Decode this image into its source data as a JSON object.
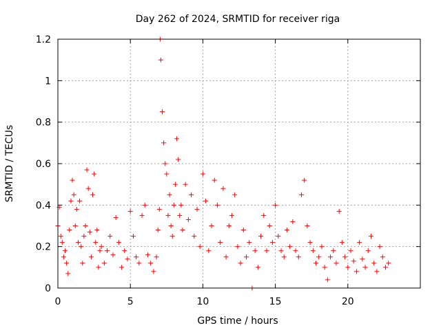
{
  "chart_data": {
    "type": "scatter",
    "title": "Day 262 of 2024, SRMTID for receiver riga",
    "xlabel": "GPS time / hours",
    "ylabel": "SRMTID / TECUs",
    "xlim": [
      0,
      25
    ],
    "ylim": [
      0,
      1.2
    ],
    "grid": true,
    "xticks": [
      0,
      5,
      10,
      15,
      20
    ],
    "xtick_labels": [
      "0",
      "5",
      "10",
      "15",
      "20"
    ],
    "yticks": [
      0,
      0.2,
      0.4,
      0.6,
      0.8,
      1,
      1.2
    ],
    "ytick_labels": [
      "0",
      "0.2",
      "0.4",
      "0.6",
      "0.8",
      "1",
      "1.2"
    ],
    "marker": "+",
    "color": "#ff0000",
    "series": [
      {
        "name": "SRMTID",
        "x": [
          0.0,
          0.1,
          0.2,
          0.3,
          0.4,
          0.5,
          0.6,
          0.7,
          0.8,
          0.9,
          1.0,
          1.1,
          1.2,
          1.3,
          1.4,
          1.5,
          1.6,
          1.7,
          1.8,
          1.9,
          2.0,
          2.1,
          2.2,
          2.3,
          2.4,
          2.5,
          2.6,
          2.7,
          2.8,
          2.9,
          3.0,
          3.2,
          3.4,
          3.6,
          3.8,
          4.0,
          4.2,
          4.4,
          4.6,
          4.8,
          5.0,
          5.2,
          5.4,
          5.6,
          5.8,
          6.0,
          6.2,
          6.4,
          6.6,
          6.8,
          6.9,
          7.0,
          7.05,
          7.1,
          7.2,
          7.3,
          7.4,
          7.5,
          7.6,
          7.7,
          7.8,
          7.9,
          8.0,
          8.1,
          8.2,
          8.3,
          8.4,
          8.5,
          8.6,
          8.8,
          9.0,
          9.2,
          9.4,
          9.6,
          9.8,
          10.0,
          10.2,
          10.4,
          10.6,
          10.8,
          11.0,
          11.2,
          11.4,
          11.6,
          11.8,
          12.0,
          12.2,
          12.4,
          12.6,
          12.8,
          13.0,
          13.2,
          13.4,
          13.6,
          13.8,
          14.0,
          14.2,
          14.4,
          14.6,
          14.8,
          15.0,
          15.2,
          15.4,
          15.6,
          15.8,
          16.0,
          16.2,
          16.4,
          16.6,
          16.8,
          17.0,
          17.2,
          17.4,
          17.6,
          17.8,
          18.0,
          18.2,
          18.4,
          18.6,
          18.8,
          19.0,
          19.2,
          19.4,
          19.6,
          19.8,
          20.0,
          20.2,
          20.4,
          20.6,
          20.8,
          21.0,
          21.2,
          21.4,
          21.6,
          21.8,
          22.0,
          22.2,
          22.4,
          22.6,
          22.8
        ],
        "y": [
          0.3,
          0.39,
          0.25,
          0.22,
          0.15,
          0.18,
          0.12,
          0.07,
          0.28,
          0.42,
          0.52,
          0.45,
          0.3,
          0.38,
          0.22,
          0.42,
          0.2,
          0.12,
          0.25,
          0.3,
          0.57,
          0.48,
          0.27,
          0.15,
          0.45,
          0.55,
          0.22,
          0.28,
          0.1,
          0.18,
          0.2,
          0.12,
          0.18,
          0.25,
          0.16,
          0.34,
          0.22,
          0.1,
          0.18,
          0.14,
          0.37,
          0.25,
          0.15,
          0.12,
          0.35,
          0.4,
          0.16,
          0.12,
          0.08,
          0.15,
          0.28,
          0.38,
          1.2,
          1.1,
          0.85,
          0.7,
          0.6,
          0.55,
          0.35,
          0.45,
          0.3,
          0.25,
          0.4,
          0.5,
          0.72,
          0.62,
          0.35,
          0.4,
          0.28,
          0.5,
          0.33,
          0.45,
          0.25,
          0.38,
          0.2,
          0.55,
          0.42,
          0.18,
          0.3,
          0.52,
          0.4,
          0.22,
          0.48,
          0.15,
          0.3,
          0.35,
          0.45,
          0.2,
          0.12,
          0.28,
          0.15,
          0.22,
          0.0,
          0.18,
          0.1,
          0.25,
          0.35,
          0.18,
          0.3,
          0.22,
          0.4,
          0.25,
          0.18,
          0.15,
          0.28,
          0.2,
          0.32,
          0.18,
          0.15,
          0.45,
          0.52,
          0.3,
          0.22,
          0.18,
          0.12,
          0.15,
          0.2,
          0.1,
          0.04,
          0.15,
          0.18,
          0.12,
          0.37,
          0.22,
          0.15,
          0.1,
          0.18,
          0.13,
          0.08,
          0.22,
          0.14,
          0.1,
          0.18,
          0.25,
          0.12,
          0.08,
          0.2,
          0.15,
          0.1,
          0.12
        ]
      }
    ]
  }
}
